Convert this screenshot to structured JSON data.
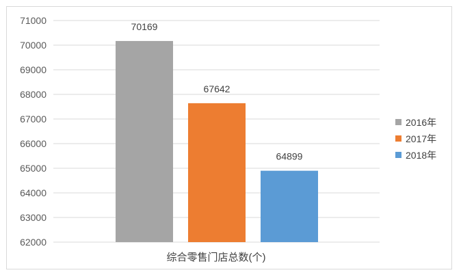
{
  "chart_data": {
    "type": "bar",
    "categories": [
      "综合零售门店总数(个)"
    ],
    "series": [
      {
        "name": "2016年",
        "values": [
          70169
        ],
        "color": "#a5a5a5"
      },
      {
        "name": "2017年",
        "values": [
          67642
        ],
        "color": "#ed7d31"
      },
      {
        "name": "2018年",
        "values": [
          64899
        ],
        "color": "#5b9bd5"
      }
    ],
    "yticks": [
      "62000",
      "63000",
      "64000",
      "65000",
      "66000",
      "67000",
      "68000",
      "69000",
      "70000",
      "71000"
    ],
    "ylim": [
      62000,
      71000
    ],
    "grid": true,
    "legend": "right"
  }
}
